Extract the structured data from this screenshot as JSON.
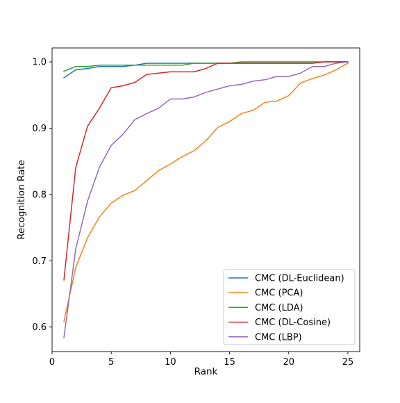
{
  "chart_data": {
    "type": "line",
    "title": "",
    "xlabel": "Rank",
    "ylabel": "Recognition Rate",
    "xlim": [
      0,
      26
    ],
    "ylim": [
      0.563,
      1.021
    ],
    "xticks": [
      0,
      5,
      10,
      15,
      20,
      25
    ],
    "yticks": [
      0.6,
      0.7,
      0.8,
      0.9,
      1.0
    ],
    "xtick_labels": [
      "0",
      "5",
      "10",
      "15",
      "20",
      "25"
    ],
    "ytick_labels": [
      "0.6",
      "0.7",
      "0.8",
      "0.9",
      "1.0"
    ],
    "grid": false,
    "legend_position": "lower-right",
    "x": [
      1,
      2,
      3,
      4,
      5,
      6,
      7,
      8,
      9,
      10,
      11,
      12,
      13,
      14,
      15,
      16,
      17,
      18,
      19,
      20,
      21,
      22,
      23,
      24,
      25
    ],
    "series": [
      {
        "name": "CMC (DL-Euclidean)",
        "color": "#1f77b4",
        "values": [
          0.976,
          0.988,
          0.99,
          0.993,
          0.993,
          0.993,
          0.995,
          0.998,
          0.998,
          0.998,
          0.998,
          0.998,
          0.998,
          0.998,
          0.998,
          0.998,
          0.998,
          0.998,
          0.998,
          0.998,
          0.998,
          0.998,
          1.0,
          1.0,
          1.0
        ]
      },
      {
        "name": "CMC (PCA)",
        "color": "#ff7f0e",
        "values": [
          0.608,
          0.69,
          0.735,
          0.766,
          0.787,
          0.799,
          0.806,
          0.821,
          0.836,
          0.846,
          0.857,
          0.866,
          0.881,
          0.901,
          0.91,
          0.922,
          0.927,
          0.939,
          0.941,
          0.949,
          0.968,
          0.975,
          0.98,
          0.988,
          0.998
        ]
      },
      {
        "name": "CMC (LDA)",
        "color": "#2ca02c",
        "values": [
          0.986,
          0.993,
          0.993,
          0.995,
          0.995,
          0.995,
          0.995,
          0.995,
          0.995,
          0.995,
          0.995,
          0.998,
          0.998,
          0.998,
          0.998,
          1.0,
          1.0,
          1.0,
          1.0,
          1.0,
          1.0,
          1.0,
          1.0,
          1.0,
          1.0
        ]
      },
      {
        "name": "CMC (DL-Cosine)",
        "color": "#d62728",
        "values": [
          0.671,
          0.841,
          0.903,
          0.93,
          0.961,
          0.964,
          0.969,
          0.981,
          0.983,
          0.985,
          0.985,
          0.985,
          0.99,
          0.998,
          0.998,
          0.998,
          0.998,
          0.998,
          0.998,
          0.998,
          0.998,
          0.998,
          1.0,
          1.0,
          1.0
        ]
      },
      {
        "name": "CMC (LBP)",
        "color": "#9467bd",
        "values": [
          0.584,
          0.718,
          0.79,
          0.841,
          0.874,
          0.891,
          0.913,
          0.922,
          0.93,
          0.944,
          0.944,
          0.947,
          0.954,
          0.959,
          0.964,
          0.966,
          0.971,
          0.973,
          0.978,
          0.978,
          0.983,
          0.993,
          0.993,
          0.998,
          1.0
        ]
      }
    ]
  }
}
